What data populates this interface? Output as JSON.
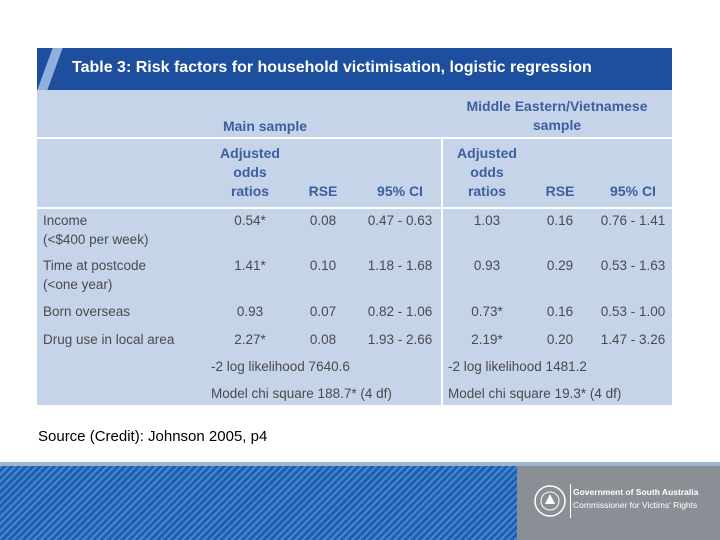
{
  "table": {
    "title": "Table 3: Risk factors for household victimisation, logistic regression",
    "groups": [
      "Main sample",
      "Middle Eastern/Vietnamese\nsample"
    ],
    "columns": [
      "Adjusted\nodds\nratios",
      "RSE",
      "95% CI",
      "Adjusted\nodds\nratios",
      "RSE",
      "95% CI"
    ],
    "rows": [
      [
        "Income\n(<$400 per week)",
        "0.54*",
        "0.08",
        "0.47 - 0.63",
        "1.03",
        "0.16",
        "0.76 - 1.41"
      ],
      [
        "Time at postcode\n(<one year)",
        "1.41*",
        "0.10",
        "1.18 - 1.68",
        "0.93",
        "0.29",
        "0.53 - 1.63"
      ],
      [
        "Born overseas",
        "0.93",
        "0.07",
        "0.82 - 1.06",
        "0.73*",
        "0.16",
        "0.53 - 1.00"
      ],
      [
        "Drug use in local area",
        "2.27*",
        "0.08",
        "1.93 - 2.66",
        "2.19*",
        "0.20",
        "1.47 - 3.26"
      ]
    ],
    "stats": [
      [
        "-2 log likelihood 7640.6",
        "Model chi square 188.7* (4 df)"
      ],
      [
        "-2 log likelihood 1481.2",
        "Model chi square 19.3* (4 df)"
      ]
    ]
  },
  "source": "Source (Credit): Johnson 2005, p4",
  "footer": {
    "org": "Government of South Australia",
    "office": "Commissioner for Victims' Rights"
  }
}
